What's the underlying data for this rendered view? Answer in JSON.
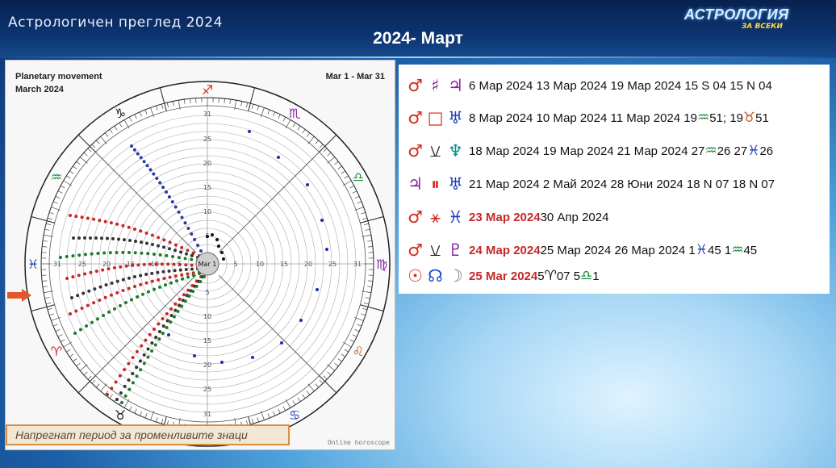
{
  "header": {
    "left_title": "Астрологичен преглед 2024",
    "main_title": "2024- Март",
    "logo_top": "АСТРОЛОГИЯ",
    "logo_sub": "ЗА ВСЕКИ"
  },
  "chart": {
    "title_line1": "Planetary movement",
    "title_line2": "March 2024",
    "range": "Mar 1 - Mar 31",
    "center_label": "Mar 1",
    "footer": "Online horoscope",
    "scale_labels": [
      "31",
      "25",
      "20",
      "15",
      "10",
      "5"
    ]
  },
  "caption": "Напрегнат период за променливите знаци",
  "aspects": [
    {
      "glyphs": [
        "♂",
        "♯",
        "♃"
      ],
      "text": "6 Мар 2024  13 Мар 2024  19 Мар 2024  15 S 04 15 N 04"
    },
    {
      "glyphs": [
        "♂",
        "□",
        "♅"
      ],
      "text": "8 Мар 2024  10 Мар 2024  11 Мар 2024 19",
      "tail": " 51; 19",
      "tail2": " 51"
    },
    {
      "glyphs": [
        "♂",
        "⚺",
        "♆"
      ],
      "text": "18 Мар 2024  19 Мар 2024  21 Мар 2024  27",
      "tail": " 26  27",
      "tail2": "26"
    },
    {
      "glyphs": [
        "♃",
        "⏸",
        "♅"
      ],
      "text": "21 Мар 2024 2 Май  2024   28 Юни 2024  18 N 07 18 N 07"
    },
    {
      "glyphs": [
        "♂",
        "⚹",
        "♓"
      ],
      "bold": "23 Мар 2024",
      "text": "  30 Апр 2024"
    },
    {
      "glyphs": [
        "♂",
        "⚺",
        "♇"
      ],
      "bold": "24 Мар 2024",
      "text": "  25 Мар 2024  26 Мар 2024  1",
      "tail": " 45  1",
      "tail2": " 45"
    },
    {
      "glyphs": [
        "☉",
        "☊",
        "☽"
      ],
      "bold": "25 Маr 2024",
      "text": "           5",
      "tail": " 07      5",
      "tail2": " 1"
    }
  ],
  "symbols": {
    "aquarius": "♒",
    "taurus": "♉",
    "pisces": "♓",
    "aries": "♈",
    "libra": "♎"
  }
}
